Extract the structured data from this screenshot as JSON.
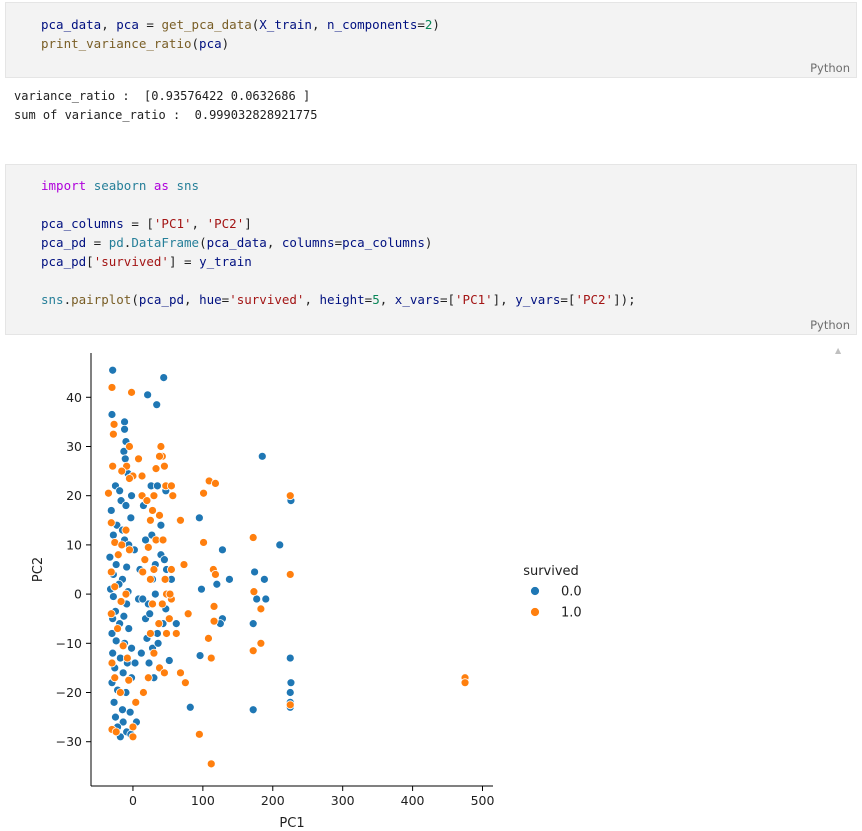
{
  "cell1": {
    "code_l1": [
      "pca_data",
      ", ",
      "pca",
      " = ",
      "get_pca_data",
      "(",
      "X_train",
      ", ",
      "n_components",
      "=",
      "2",
      ")"
    ],
    "code_l2": [
      "print_variance_ratio",
      "(",
      "pca",
      ")"
    ],
    "lang": "Python"
  },
  "output1": {
    "line1": "variance_ratio :  [0.93576422 0.0632686 ]",
    "line2": "sum of variance_ratio :  0.999032828921775"
  },
  "cell2": {
    "l1_import": "import",
    "l1_module": "seaborn",
    "l1_as": "as",
    "l1_alias": "sns",
    "l3": "pca_columns = ['PC1', 'PC2']",
    "l3_var": "pca_columns",
    "l3_s1": "'PC1'",
    "l3_s2": "'PC2'",
    "l4_var": "pca_pd",
    "l4_mod": "pd",
    "l4_cls": "DataFrame",
    "l4_arg": "pca_data",
    "l4_kw": "columns",
    "l4_val": "pca_columns",
    "l5_var": "pca_pd",
    "l5_key": "'survived'",
    "l5_val": "y_train",
    "l7_mod": "sns",
    "l7_fn": "pairplot",
    "l7_arg": "pca_pd",
    "l7_kw1": "hue",
    "l7_s1": "'survived'",
    "l7_kw2": "height",
    "l7_n": "5",
    "l7_kw3": "x_vars",
    "l7_s2": "'PC1'",
    "l7_kw4": "y_vars",
    "l7_s3": "'PC2'",
    "lang": "Python"
  },
  "colors": {
    "series0": "#1f77b4",
    "series1": "#ff7f0e"
  },
  "chart_data": {
    "type": "scatter",
    "xlabel": "PC1",
    "ylabel": "PC2",
    "xlim": [
      -60,
      515
    ],
    "ylim": [
      -39,
      49
    ],
    "xticks": [
      0,
      100,
      200,
      300,
      400,
      500
    ],
    "yticks": [
      -30,
      -20,
      -10,
      0,
      10,
      20,
      30,
      40
    ],
    "legend_title": "survived",
    "legend_placement": "right",
    "series": [
      {
        "name": "0.0",
        "color": "#1f77b4",
        "points": [
          [
            -29,
            45.5
          ],
          [
            21,
            40.5
          ],
          [
            34,
            38.5
          ],
          [
            44,
            44
          ],
          [
            -30,
            36.5
          ],
          [
            -12,
            35
          ],
          [
            -12,
            33.5
          ],
          [
            -10,
            31
          ],
          [
            -13,
            29
          ],
          [
            -11,
            27.5
          ],
          [
            -7,
            24.5
          ],
          [
            -25,
            22
          ],
          [
            -19,
            21
          ],
          [
            -2,
            20
          ],
          [
            -17,
            19
          ],
          [
            -31,
            17
          ],
          [
            -10,
            18
          ],
          [
            -3,
            15.5
          ],
          [
            -23,
            14
          ],
          [
            -15,
            13
          ],
          [
            -28,
            12
          ],
          [
            -12,
            11
          ],
          [
            -6,
            10
          ],
          [
            2,
            9
          ],
          [
            -20,
            8
          ],
          [
            -33,
            7.5
          ],
          [
            -24,
            6
          ],
          [
            -9,
            5.5
          ],
          [
            -28,
            4
          ],
          [
            -15,
            3
          ],
          [
            -20,
            2
          ],
          [
            -32,
            1
          ],
          [
            -7,
            0.5
          ],
          [
            -28,
            -0.5
          ],
          [
            -16,
            -1.5
          ],
          [
            -9,
            -2
          ],
          [
            -25,
            -3.5
          ],
          [
            -13,
            -4.5
          ],
          [
            -29,
            -5
          ],
          [
            -19,
            -6
          ],
          [
            -6,
            -7
          ],
          [
            -30,
            -8
          ],
          [
            -24,
            -9.5
          ],
          [
            -12,
            -10
          ],
          [
            -2,
            -11
          ],
          [
            -29,
            -12
          ],
          [
            -18,
            -13
          ],
          [
            -8,
            -14
          ],
          [
            -26,
            -15
          ],
          [
            -14,
            -16
          ],
          [
            -2,
            -17
          ],
          [
            -30,
            -18
          ],
          [
            -22,
            -19.5
          ],
          [
            -10,
            -20
          ],
          [
            -27,
            -22
          ],
          [
            -15,
            -23.5
          ],
          [
            -4,
            -24
          ],
          [
            -25,
            -25
          ],
          [
            -14,
            -26
          ],
          [
            -22,
            -27
          ],
          [
            -9,
            -28
          ],
          [
            -18,
            -29
          ],
          [
            -3,
            -28.5
          ],
          [
            5,
            -26
          ],
          [
            12,
            -12
          ],
          [
            18,
            -5
          ],
          [
            22,
            -2
          ],
          [
            28,
            3
          ],
          [
            32,
            6
          ],
          [
            40,
            8
          ],
          [
            45,
            7
          ],
          [
            48,
            5
          ],
          [
            55,
            3
          ],
          [
            47,
            -3
          ],
          [
            35,
            -8
          ],
          [
            28,
            -11
          ],
          [
            23,
            -14
          ],
          [
            30,
            -17
          ],
          [
            15,
            18
          ],
          [
            26,
            22
          ],
          [
            35,
            22
          ],
          [
            47,
            21
          ],
          [
            40,
            14
          ],
          [
            27,
            12
          ],
          [
            18,
            11
          ],
          [
            10,
            5
          ],
          [
            8,
            -1
          ],
          [
            32,
            0
          ],
          [
            24,
            -4
          ],
          [
            62,
            -6
          ],
          [
            67,
            15
          ],
          [
            95,
            15.5
          ],
          [
            98,
            1
          ],
          [
            113,
            -13
          ],
          [
            120,
            2
          ],
          [
            128,
            9
          ],
          [
            138,
            3
          ],
          [
            128,
            -5
          ],
          [
            125,
            -6
          ],
          [
            96,
            -12.5
          ],
          [
            82,
            -23
          ],
          [
            172,
            -23.5
          ],
          [
            172,
            -6
          ],
          [
            174,
            4.5
          ],
          [
            210,
            10
          ],
          [
            177,
            -1
          ],
          [
            188,
            3
          ],
          [
            190,
            -1
          ],
          [
            185,
            28
          ],
          [
            226,
            19
          ],
          [
            225,
            -13
          ],
          [
            226,
            -18
          ],
          [
            225,
            -20
          ],
          [
            225,
            -22
          ],
          [
            225,
            -23
          ],
          [
            52,
            -13.5
          ],
          [
            14,
            -1
          ],
          [
            20,
            -9
          ],
          [
            36,
            -10
          ],
          [
            43,
            -6
          ],
          [
            3,
            -14
          ]
        ]
      },
      {
        "name": "1.0",
        "color": "#ff7f0e",
        "points": [
          [
            -30,
            42
          ],
          [
            -2,
            41
          ],
          [
            -27,
            34.5
          ],
          [
            -28,
            32.5
          ],
          [
            -9,
            26
          ],
          [
            0,
            24
          ],
          [
            -16,
            25
          ],
          [
            -29,
            26
          ],
          [
            -35,
            20.5
          ],
          [
            -5,
            23.5
          ],
          [
            13,
            24
          ],
          [
            13,
            20
          ],
          [
            20,
            19
          ],
          [
            28,
            17
          ],
          [
            -31,
            14.5
          ],
          [
            -26,
            10.5
          ],
          [
            -21,
            8
          ],
          [
            -16,
            10
          ],
          [
            -10,
            13
          ],
          [
            -5,
            9
          ],
          [
            -31,
            4.5
          ],
          [
            -26,
            1.5
          ],
          [
            -17,
            -1.5
          ],
          [
            -10,
            0
          ],
          [
            -31,
            -4
          ],
          [
            -22,
            -7
          ],
          [
            -14,
            -10.5
          ],
          [
            -8,
            -13
          ],
          [
            -30,
            -14
          ],
          [
            -26,
            -17
          ],
          [
            -18,
            -20
          ],
          [
            -6,
            -17.5
          ],
          [
            -30,
            -27.5
          ],
          [
            -24,
            -28
          ],
          [
            0,
            -29
          ],
          [
            0,
            -27
          ],
          [
            4,
            -22
          ],
          [
            15,
            -20
          ],
          [
            22,
            -17
          ],
          [
            38,
            -15
          ],
          [
            45,
            -16
          ],
          [
            30,
            -12
          ],
          [
            25,
            -8
          ],
          [
            37,
            -6
          ],
          [
            48,
            -8
          ],
          [
            52,
            -5
          ],
          [
            28,
            -2
          ],
          [
            42,
            -2
          ],
          [
            48,
            0
          ],
          [
            55,
            -1
          ],
          [
            25,
            3
          ],
          [
            30,
            5
          ],
          [
            14,
            4.5
          ],
          [
            17,
            7
          ],
          [
            22,
            9.5
          ],
          [
            33,
            11
          ],
          [
            43,
            11
          ],
          [
            38,
            16
          ],
          [
            25,
            15
          ],
          [
            30,
            20
          ],
          [
            47,
            22
          ],
          [
            55,
            22
          ],
          [
            57,
            20
          ],
          [
            68,
            15
          ],
          [
            73,
            6
          ],
          [
            55,
            5
          ],
          [
            46,
            3
          ],
          [
            53,
            0
          ],
          [
            79,
            -4
          ],
          [
            62,
            -8
          ],
          [
            68,
            -16
          ],
          [
            75,
            -18
          ],
          [
            101,
            20.5
          ],
          [
            101,
            10.5
          ],
          [
            109,
            23
          ],
          [
            118,
            22.5
          ],
          [
            115,
            5
          ],
          [
            118,
            4
          ],
          [
            116,
            -2.5
          ],
          [
            116,
            -5.5
          ],
          [
            108,
            -9
          ],
          [
            112,
            -13
          ],
          [
            95,
            -28.5
          ],
          [
            112,
            -34.5
          ],
          [
            172,
            11.5
          ],
          [
            173,
            0.5
          ],
          [
            183,
            -3
          ],
          [
            183,
            -10
          ],
          [
            172,
            -11.5
          ],
          [
            225,
            20
          ],
          [
            225,
            4
          ],
          [
            225,
            -22.5
          ],
          [
            475,
            -17
          ],
          [
            475,
            -18
          ],
          [
            40,
            30
          ],
          [
            42,
            28
          ],
          [
            38,
            28
          ],
          [
            45,
            26
          ],
          [
            33,
            25.5
          ],
          [
            8,
            27.5
          ],
          [
            -5,
            30
          ]
        ]
      }
    ]
  }
}
